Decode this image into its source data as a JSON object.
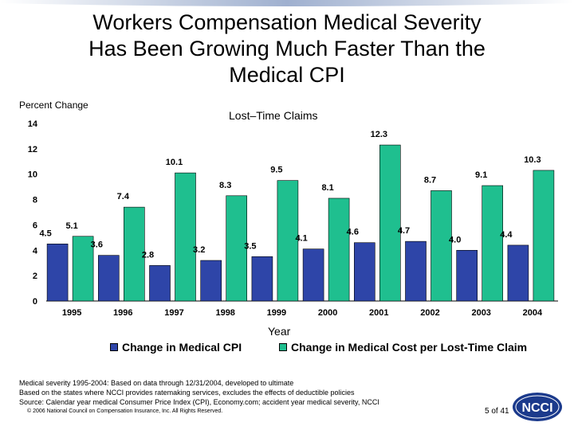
{
  "slide": {
    "title_lines": [
      "Workers Compensation Medical Severity",
      "Has Been Growing Much Faster Than the",
      "Medical CPI"
    ],
    "footnotes": [
      "Medical severity 1995-2004: Based on data through 12/31/2004, developed to ultimate",
      "Based on the states where NCCI provides ratemaking services, excludes the effects of deductible policies",
      "Source: Calendar year medical Consumer Price Index (CPI), Economy.com; accident year medical severity, NCCI"
    ],
    "copyright": "© 2006 National Council on Compensation Insurance, Inc. All Rights Reserved.",
    "page_number": "5 of 41",
    "logo_text": "NCCI"
  },
  "chart_data": {
    "type": "bar",
    "subtitle": "Lost–Time Claims",
    "ylabel": "Percent Change",
    "xlabel": "Year",
    "ylim": [
      0,
      14
    ],
    "yticks": [
      0,
      2,
      4,
      6,
      8,
      10,
      12,
      14
    ],
    "categories": [
      "1995",
      "1996",
      "1997",
      "1998",
      "1999",
      "2000",
      "2001",
      "2002",
      "2003",
      "2004"
    ],
    "series": [
      {
        "name": "Change in Medical CPI",
        "color": "#2e45a8",
        "values": [
          4.5,
          3.6,
          2.8,
          3.2,
          3.5,
          4.1,
          4.6,
          4.7,
          4.0,
          4.4
        ]
      },
      {
        "name": "Change in Medical Cost per Lost-Time Claim",
        "color": "#1fbf8f",
        "values": [
          5.1,
          7.4,
          10.1,
          8.3,
          9.5,
          8.1,
          12.3,
          8.7,
          9.1,
          10.3
        ]
      }
    ],
    "grid": false,
    "legend_position": "bottom"
  }
}
